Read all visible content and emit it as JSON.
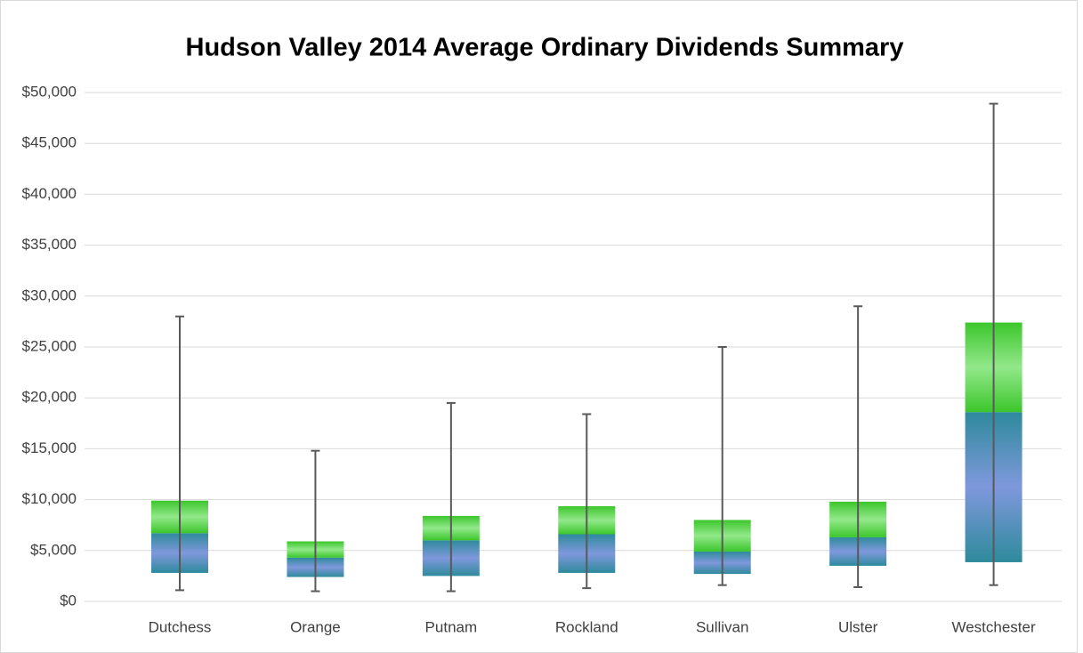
{
  "chart_data": {
    "type": "box",
    "title": "Hudson Valley 2014 Average Ordinary Dividends Summary",
    "categories": [
      "Dutchess",
      "Orange",
      "Putnam",
      "Rockland",
      "Sullivan",
      "Ulster",
      "Westchester"
    ],
    "min": [
      1100,
      1000,
      1000,
      1300,
      1600,
      1400,
      1600
    ],
    "q1": [
      2800,
      2400,
      2500,
      2800,
      2700,
      3500,
      3850
    ],
    "median": [
      6700,
      4300,
      6000,
      6600,
      4900,
      6300,
      18600
    ],
    "q3": [
      9900,
      5900,
      8400,
      9350,
      8000,
      9800,
      27400
    ],
    "max": [
      28000,
      14800,
      19500,
      18400,
      25000,
      29000,
      48900
    ],
    "lower_colors": [
      "#2e8a9c",
      "#7f98dc"
    ],
    "upper_colors": [
      "#3cc62c",
      "#92e88a"
    ],
    "whisker_color": "#595959",
    "ylim": [
      0,
      50000
    ],
    "yticks": [
      {
        "value": 0,
        "label": "$0"
      },
      {
        "value": 5000,
        "label": "$5,000"
      },
      {
        "value": 10000,
        "label": "$10,000"
      },
      {
        "value": 15000,
        "label": "$15,000"
      },
      {
        "value": 20000,
        "label": "$20,000"
      },
      {
        "value": 25000,
        "label": "$25,000"
      },
      {
        "value": 30000,
        "label": "$30,000"
      },
      {
        "value": 35000,
        "label": "$35,000"
      },
      {
        "value": 40000,
        "label": "$40,000"
      },
      {
        "value": 45000,
        "label": "$45,000"
      },
      {
        "value": 50000,
        "label": "$50,000"
      }
    ],
    "grid": true
  }
}
